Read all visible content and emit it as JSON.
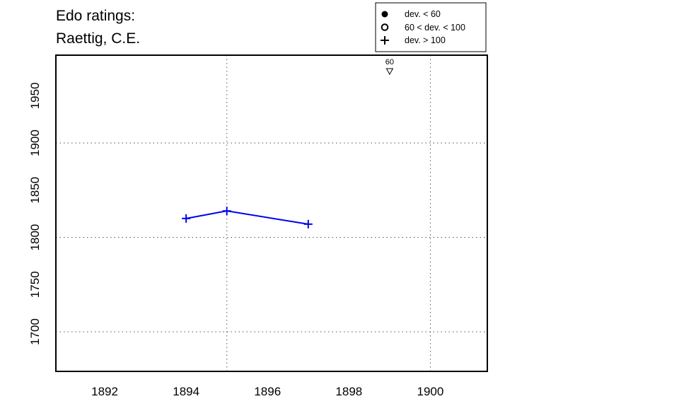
{
  "chart_data": {
    "type": "line",
    "title_lines": [
      "Edo ratings:",
      "Raettig, C.E."
    ],
    "xlabel": "",
    "ylabel": "",
    "xlim": [
      1890.8,
      1901.4
    ],
    "ylim": [
      1658,
      1993
    ],
    "x_ticks": [
      "1892",
      "1894",
      "1896",
      "1898",
      "1900"
    ],
    "y_ticks": [
      "1700",
      "1750",
      "1800",
      "1850",
      "1900",
      "1950"
    ],
    "grid": "dotted",
    "grid_x": [
      1895,
      1900
    ],
    "grid_y": [
      1700,
      1800,
      1900
    ],
    "series": [
      {
        "color": "#0000ee",
        "marker": "plus",
        "points": [
          {
            "x": 1894,
            "y": 1820
          },
          {
            "x": 1895,
            "y": 1828
          },
          {
            "x": 1897,
            "y": 1814
          }
        ]
      }
    ],
    "annotations": [
      {
        "x": 1899,
        "label": "60",
        "marker": "down-triangle"
      }
    ],
    "legend": {
      "position": "top-right",
      "entries": [
        {
          "symbol": "filled-circle",
          "label": "dev. < 60"
        },
        {
          "symbol": "open-circle",
          "label": "60 < dev. < 100"
        },
        {
          "symbol": "plus",
          "label": "dev. > 100"
        }
      ]
    }
  }
}
